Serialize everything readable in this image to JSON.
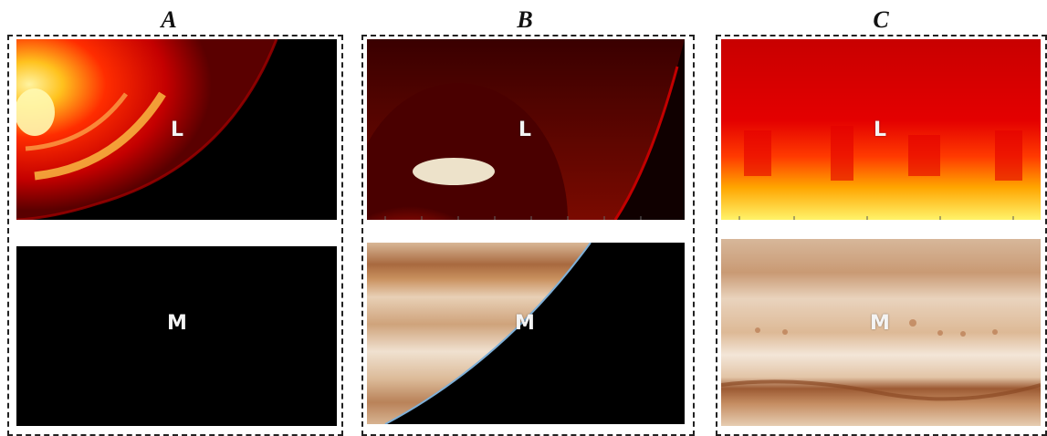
{
  "columns": [
    {
      "title": "A",
      "top_label": "L",
      "bottom_label": "M"
    },
    {
      "title": "B",
      "top_label": "L",
      "bottom_label": "M"
    },
    {
      "title": "C",
      "top_label": "L",
      "bottom_label": "M"
    }
  ],
  "colors": {
    "infrared_dark": "#1a0000",
    "infrared_red": "#e60000",
    "infrared_yellow": "#ffe14a",
    "visible_tan": "#d9b594",
    "visible_band": "#a8673f",
    "space": "#000000"
  }
}
